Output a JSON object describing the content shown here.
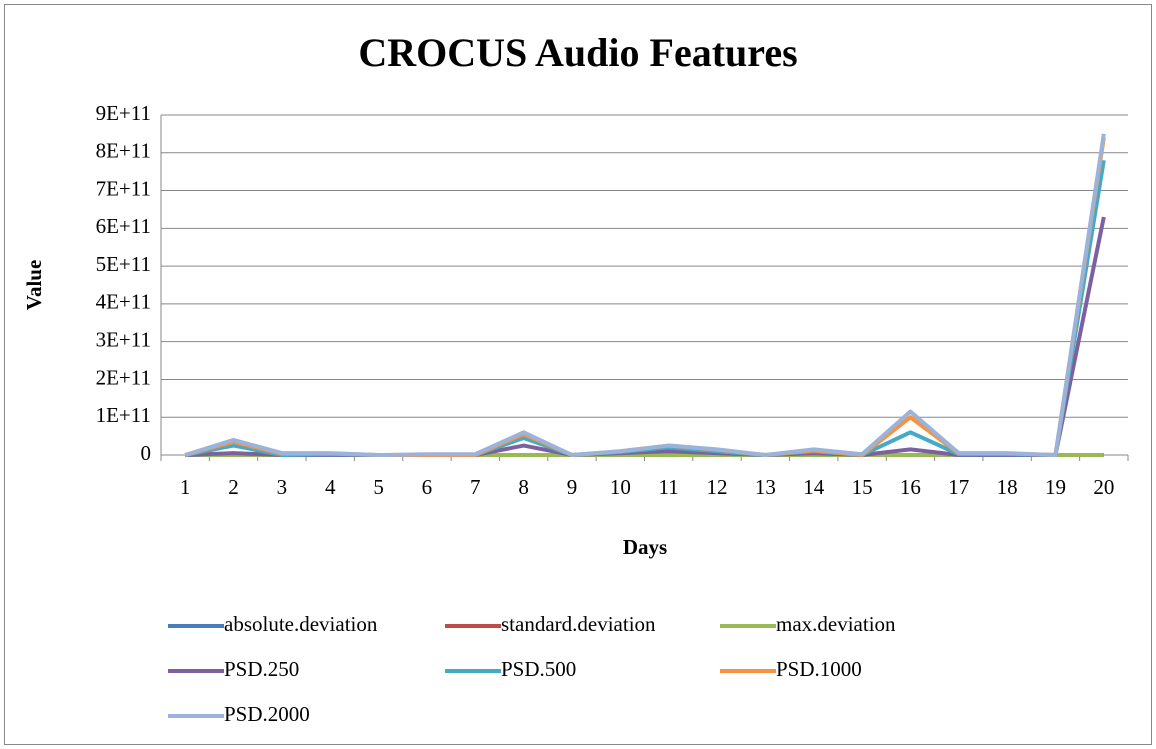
{
  "chart_data": {
    "type": "line",
    "title": "CROCUS Audio Features",
    "xlabel": "Days",
    "ylabel": "Value",
    "categories": [
      "1",
      "2",
      "3",
      "4",
      "5",
      "6",
      "7",
      "8",
      "9",
      "10",
      "11",
      "12",
      "13",
      "14",
      "15",
      "16",
      "17",
      "18",
      "19",
      "20"
    ],
    "series": [
      {
        "name": "absolute.deviation",
        "color": "#4a7ebb",
        "values": [
          0,
          0,
          0,
          0,
          0,
          0,
          0,
          0,
          0,
          0,
          0,
          0,
          0,
          0,
          0,
          0,
          0,
          0,
          0,
          0
        ]
      },
      {
        "name": "standard.deviation",
        "color": "#be4b48",
        "values": [
          0,
          0,
          0,
          0,
          0,
          0,
          0,
          0,
          0,
          0,
          0,
          0,
          0,
          0,
          0,
          0,
          0,
          0,
          0,
          0
        ]
      },
      {
        "name": "max.deviation",
        "color": "#98b954",
        "values": [
          0,
          0,
          0,
          0,
          0,
          0,
          0,
          0,
          0,
          0,
          0,
          0,
          0,
          0,
          0,
          0,
          0,
          0,
          0,
          0
        ]
      },
      {
        "name": "PSD.250",
        "color": "#7d60a0",
        "values": [
          0,
          5000000000,
          0,
          0,
          0,
          0,
          0,
          25000000000,
          0,
          5000000000,
          10000000000,
          5000000000,
          0,
          5000000000,
          0,
          15000000000,
          0,
          0,
          0,
          630000000000
        ]
      },
      {
        "name": "PSD.500",
        "color": "#46aac5",
        "values": [
          0,
          25000000000,
          0,
          2000000000,
          0,
          0,
          0,
          45000000000,
          0,
          8000000000,
          20000000000,
          10000000000,
          0,
          10000000000,
          0,
          60000000000,
          2000000000,
          2000000000,
          0,
          780000000000
        ]
      },
      {
        "name": "PSD.1000",
        "color": "#f69240",
        "values": [
          0,
          35000000000,
          3000000000,
          4000000000,
          0,
          0,
          0,
          55000000000,
          0,
          10000000000,
          25000000000,
          14000000000,
          0,
          12000000000,
          0,
          100000000000,
          4000000000,
          4000000000,
          0,
          840000000000
        ]
      },
      {
        "name": "PSD.2000",
        "color": "#9bb3da",
        "values": [
          0,
          40000000000,
          5000000000,
          5000000000,
          0,
          2000000000,
          2000000000,
          60000000000,
          0,
          10000000000,
          25000000000,
          15000000000,
          0,
          15000000000,
          2000000000,
          115000000000,
          5000000000,
          5000000000,
          0,
          850000000000
        ]
      }
    ],
    "ylim": [
      0,
      900000000000
    ],
    "yticks": [
      0,
      {
        "value": 100000000000,
        "label": "1E+11"
      },
      {
        "value": 200000000000,
        "label": "2E+11"
      },
      {
        "value": 300000000000,
        "label": "3E+11"
      },
      {
        "value": 400000000000,
        "label": "4E+11"
      },
      {
        "value": 500000000000,
        "label": "5E+11"
      },
      {
        "value": 600000000000,
        "label": "6E+11"
      },
      {
        "value": 700000000000,
        "label": "7E+11"
      },
      {
        "value": 800000000000,
        "label": "8E+11"
      },
      {
        "value": 900000000000,
        "label": "9E+11"
      }
    ],
    "grid": true,
    "legend": "bottom"
  }
}
